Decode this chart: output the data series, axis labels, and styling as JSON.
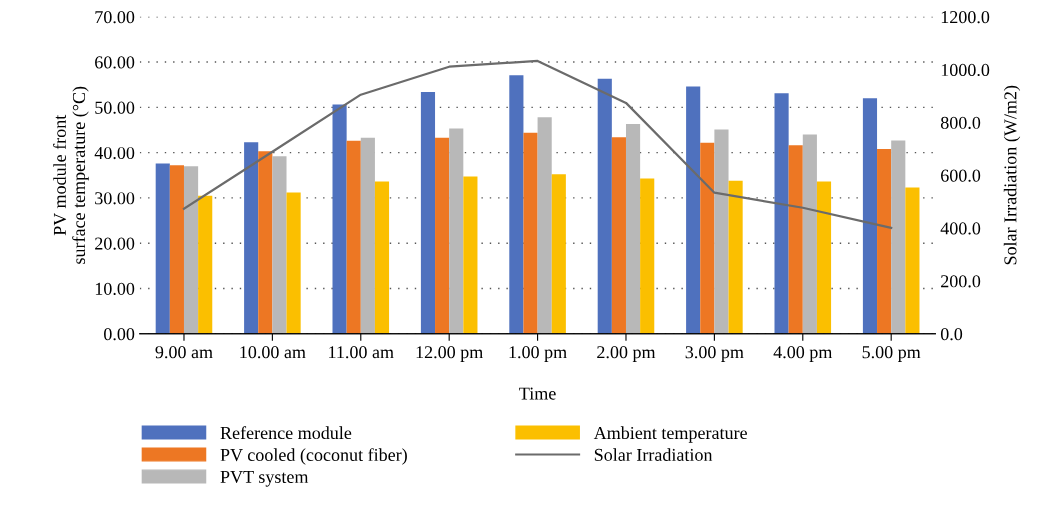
{
  "chart_data": {
    "type": "bar",
    "xlabel": "Time",
    "ylabel": "PV module front\nsurface temperature (°C)",
    "y2label": "Solar Irradiation (W/m2)",
    "categories": [
      "9.00 am",
      "10.00 am",
      "11.00 am",
      "12.00 pm",
      "1.00 pm",
      "2.00 pm",
      "3.00 pm",
      "4.00 pm",
      "5.00 pm"
    ],
    "series": [
      {
        "name": "Reference module",
        "color": "#4f71be",
        "values": [
          37.6,
          42.3,
          50.6,
          53.4,
          57.1,
          56.3,
          54.6,
          53.1,
          52.0
        ]
      },
      {
        "name": "PV cooled (coconut fiber)",
        "color": "#ed7723",
        "values": [
          37.2,
          40.3,
          42.6,
          43.3,
          44.4,
          43.4,
          42.2,
          41.6,
          40.8
        ]
      },
      {
        "name": "PVT system",
        "color": "#b8b8b8",
        "values": [
          37.0,
          39.2,
          43.3,
          45.3,
          47.8,
          46.3,
          45.1,
          44.0,
          42.7
        ]
      },
      {
        "name": "Ambient temperature",
        "color": "#fbbf00",
        "values": [
          30.5,
          31.2,
          33.6,
          34.7,
          35.2,
          34.3,
          33.8,
          33.6,
          32.3
        ]
      },
      {
        "name": "Solar Irradiation",
        "type": "line",
        "axis": "y2",
        "color": "#6b6b6b",
        "values": [
          473,
          689,
          905,
          1011,
          1033,
          874,
          534,
          477,
          401
        ]
      }
    ],
    "ylim": [
      0,
      70
    ],
    "yticks": [
      {
        "value": 0,
        "label": "0.00"
      },
      {
        "value": 10,
        "label": "10.00"
      },
      {
        "value": 20,
        "label": "20.00"
      },
      {
        "value": 30,
        "label": "30.00"
      },
      {
        "value": 40,
        "label": "40.00"
      },
      {
        "value": 50,
        "label": "50.00"
      },
      {
        "value": 60,
        "label": "60.00"
      },
      {
        "value": 70,
        "label": "70.00"
      }
    ],
    "y2lim": [
      0,
      1200
    ],
    "y2ticks": [
      {
        "value": 0,
        "label": "0.0"
      },
      {
        "value": 200,
        "label": "200.0"
      },
      {
        "value": 400,
        "label": "400.0"
      },
      {
        "value": 600,
        "label": "600.0"
      },
      {
        "value": 800,
        "label": "800.0"
      },
      {
        "value": 1000,
        "label": "1000.0"
      },
      {
        "value": 1200,
        "label": "1200.0"
      }
    ],
    "grid": "y",
    "legend": "bottom",
    "line_style": "solid",
    "marker": "none"
  }
}
